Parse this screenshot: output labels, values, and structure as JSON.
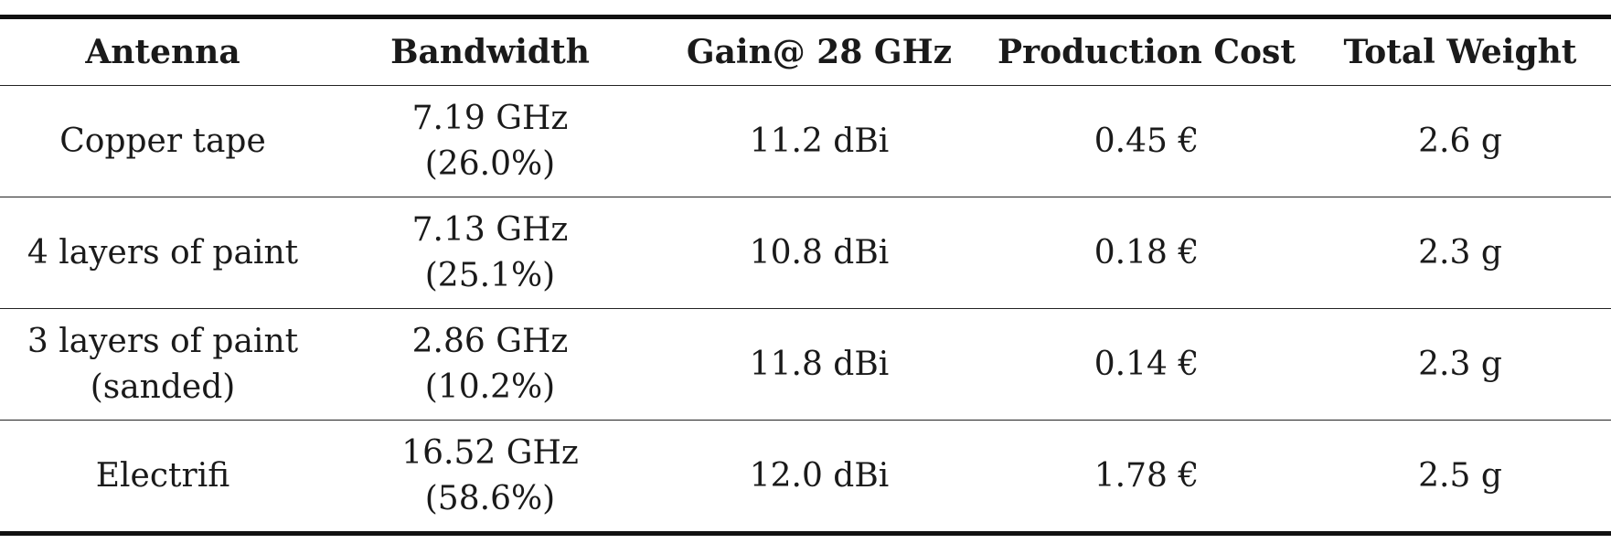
{
  "table": {
    "headers": [
      "Antenna",
      "Bandwidth",
      "Gain@ 28 GHz",
      "Production Cost",
      "Total Weight"
    ],
    "rows": [
      {
        "antenna": [
          "Copper tape"
        ],
        "bandwidth": [
          "7.19 GHz",
          "(26.0%)"
        ],
        "gain": "11.2 dBi",
        "cost": "0.45 €",
        "weight": "2.6 g"
      },
      {
        "antenna": [
          "4 layers of paint"
        ],
        "bandwidth": [
          "7.13 GHz",
          "(25.1%)"
        ],
        "gain": "10.8 dBi",
        "cost": "0.18 €",
        "weight": "2.3 g"
      },
      {
        "antenna": [
          "3 layers of paint",
          "(sanded)"
        ],
        "bandwidth": [
          "2.86 GHz",
          "(10.2%)"
        ],
        "gain": "11.8 dBi",
        "cost": "0.14 €",
        "weight": "2.3 g"
      },
      {
        "antenna": [
          "Electrifi"
        ],
        "bandwidth": [
          "16.52 GHz",
          "(58.6%)"
        ],
        "gain": "12.0 dBi",
        "cost": "1.78 €",
        "weight": "2.5 g"
      }
    ]
  }
}
